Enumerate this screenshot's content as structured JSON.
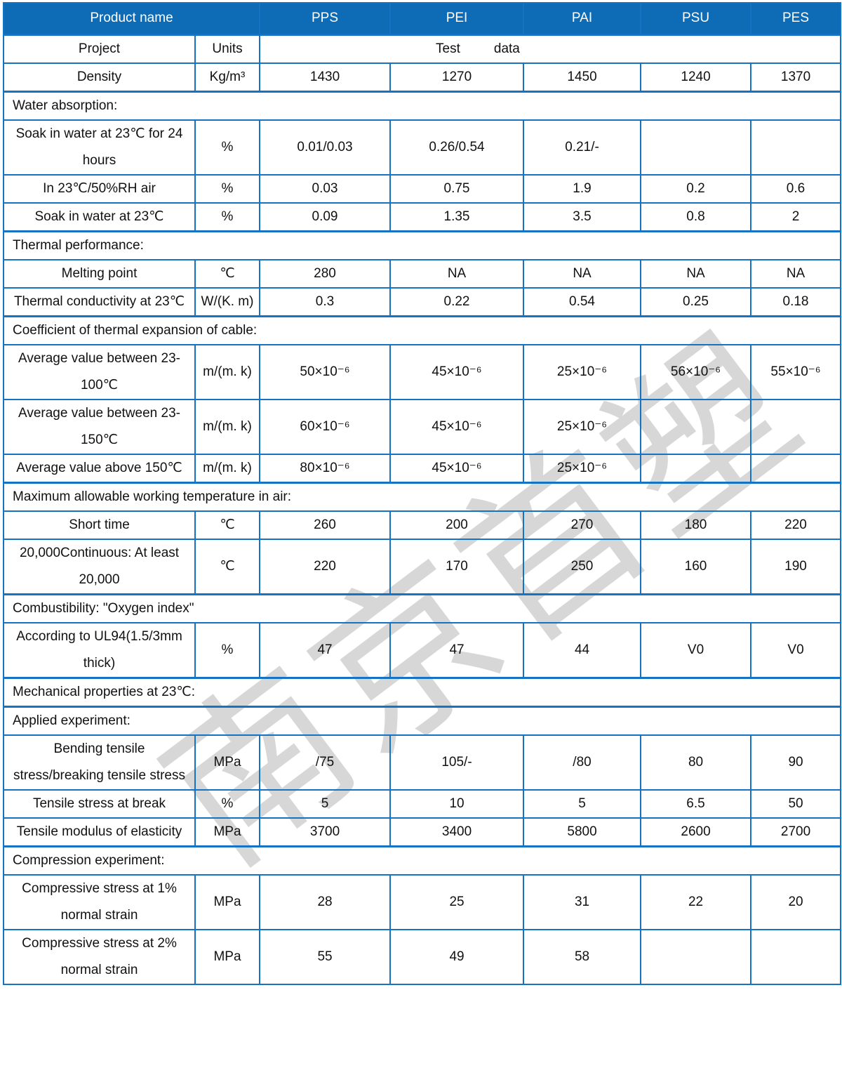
{
  "colors": {
    "header_bg": "#0e6bb6",
    "border": "#1673c4",
    "header_text": "#ffffff",
    "watermark": "#d7d7d7"
  },
  "watermark": {
    "text": "南京首塑"
  },
  "header": {
    "product_label": "Product name",
    "products": [
      "PPS",
      "PEI",
      "PAI",
      "PSU",
      "PES"
    ]
  },
  "subheader": {
    "project": "Project",
    "units": "Units",
    "test": "Test",
    "data": "data"
  },
  "rows": [
    {
      "type": "data",
      "label": "Density",
      "unit": "Kg/m³",
      "values": [
        "1430",
        "1270",
        "1450",
        "1240",
        "1370"
      ]
    },
    {
      "type": "section",
      "label": "Water absorption:"
    },
    {
      "type": "data",
      "label": "Soak in water at 23℃ for 24 hours",
      "unit": "%",
      "values": [
        "0.01/0.03",
        "0.26/0.54",
        "0.21/-",
        "",
        ""
      ]
    },
    {
      "type": "data",
      "label": "In 23℃/50%RH air",
      "unit": "%",
      "values": [
        "0.03",
        "0.75",
        "1.9",
        "0.2",
        "0.6"
      ]
    },
    {
      "type": "data",
      "label": "Soak in water at 23℃",
      "unit": "%",
      "values": [
        "0.09",
        "1.35",
        "3.5",
        "0.8",
        "2"
      ]
    },
    {
      "type": "section",
      "label": "Thermal performance:"
    },
    {
      "type": "data",
      "label": "Melting point",
      "unit": "℃",
      "values": [
        "280",
        "NA",
        "NA",
        "NA",
        "NA"
      ]
    },
    {
      "type": "data",
      "label": "Thermal conductivity at 23℃",
      "unit": "W/(K. m)",
      "values": [
        "0.3",
        "0.22",
        "0.54",
        "0.25",
        "0.18"
      ]
    },
    {
      "type": "section",
      "label": "Coefficient of thermal expansion of cable:"
    },
    {
      "type": "data",
      "label": "Average value between 23-100℃",
      "unit": "m/(m. k)",
      "values": [
        "50×10⁻⁶",
        "45×10⁻⁶",
        "25×10⁻⁶",
        "56×10⁻⁶",
        "55×10⁻⁶"
      ]
    },
    {
      "type": "data",
      "label": "Average value between 23-150℃",
      "unit": "m/(m. k)",
      "values": [
        "60×10⁻⁶",
        "45×10⁻⁶",
        "25×10⁻⁶",
        "",
        ""
      ]
    },
    {
      "type": "data",
      "label": "Average value above 150℃",
      "unit": "m/(m. k)",
      "values": [
        "80×10⁻⁶",
        "45×10⁻⁶",
        "25×10⁻⁶",
        "",
        ""
      ]
    },
    {
      "type": "section",
      "label": "Maximum allowable working temperature in air:"
    },
    {
      "type": "data",
      "label": "Short time",
      "unit": "℃",
      "values": [
        "260",
        "200",
        "270",
        "180",
        "220"
      ]
    },
    {
      "type": "data",
      "label": "20,000Continuous: At least 20,000",
      "unit": "℃",
      "values": [
        "220",
        "170",
        "250",
        "160",
        "190"
      ]
    },
    {
      "type": "section",
      "label": "Combustibility: \"Oxygen index\""
    },
    {
      "type": "data",
      "label": "According to UL94(1.5/3mm thick)",
      "unit": "%",
      "values": [
        "47",
        "47",
        "44",
        "V0",
        "V0"
      ]
    },
    {
      "type": "section",
      "label": "Mechanical properties at 23℃:"
    },
    {
      "type": "section",
      "label": "Applied experiment:"
    },
    {
      "type": "data",
      "label": "Bending tensile stress/breaking tensile stress",
      "unit": "MPa",
      "values": [
        "/75",
        "105/-",
        "/80",
        "80",
        "90"
      ]
    },
    {
      "type": "data",
      "label": "Tensile stress at break",
      "unit": "%",
      "values": [
        "5",
        "10",
        "5",
        "6.5",
        "50"
      ]
    },
    {
      "type": "data",
      "label": "Tensile modulus of elasticity",
      "unit": "MPa",
      "values": [
        "3700",
        "3400",
        "5800",
        "2600",
        "2700"
      ]
    },
    {
      "type": "section",
      "label": "Compression experiment:"
    },
    {
      "type": "data",
      "label": "Compressive stress at 1% normal strain",
      "unit": "MPa",
      "values": [
        "28",
        "25",
        "31",
        "22",
        "20"
      ]
    },
    {
      "type": "data",
      "label": "Compressive stress at 2% normal strain",
      "unit": "MPa",
      "values": [
        "55",
        "49",
        "58",
        "",
        ""
      ]
    }
  ]
}
